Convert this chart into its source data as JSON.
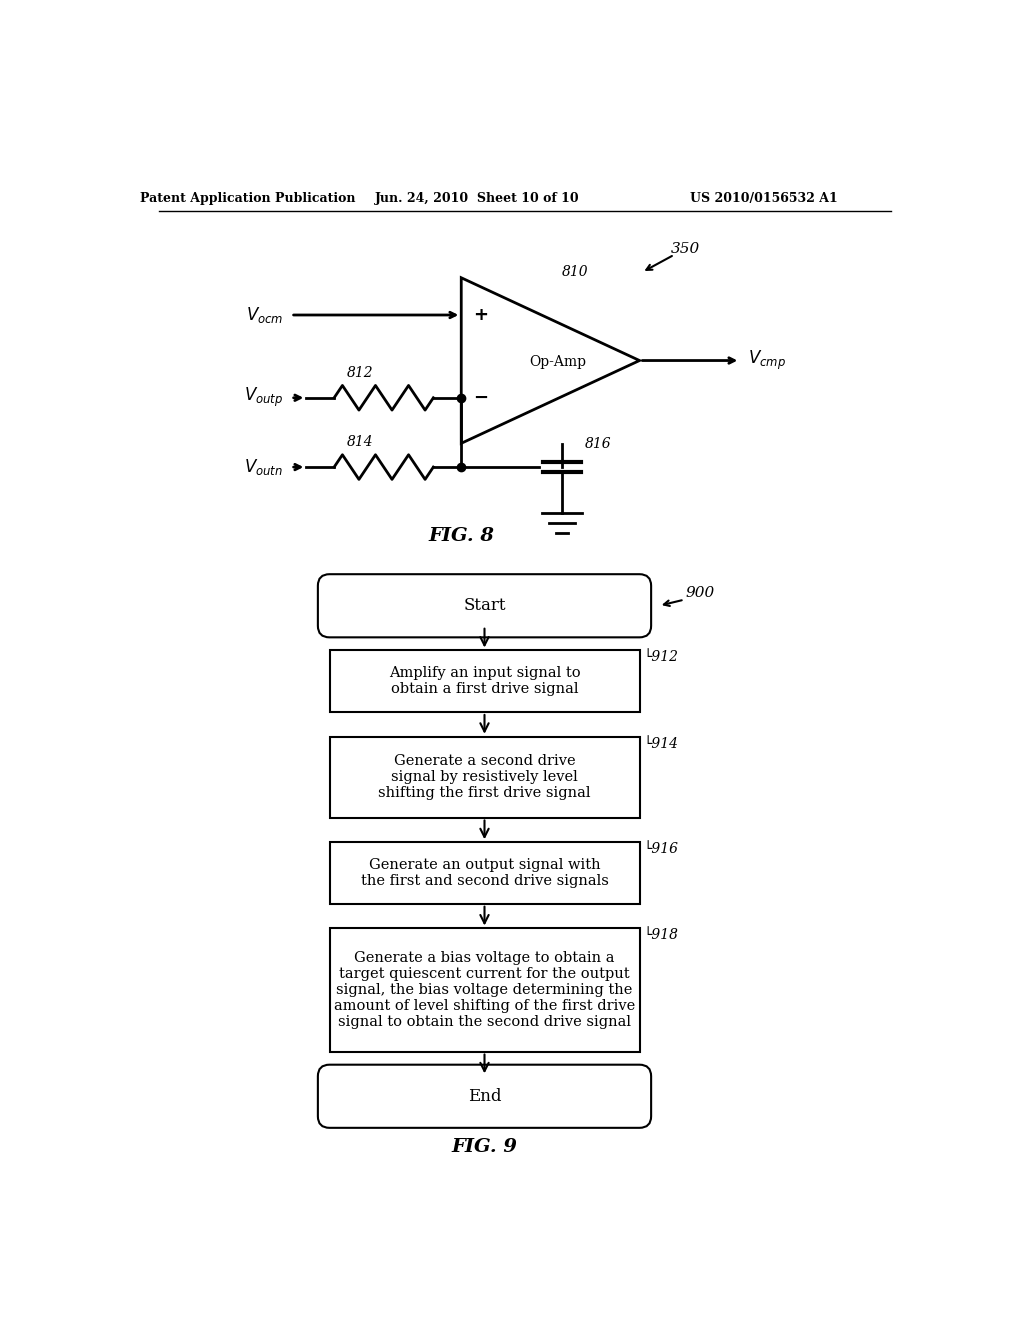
{
  "background_color": "#ffffff",
  "header_text1": "Patent Application Publication",
  "header_text2": "Jun. 24, 2010  Sheet 10 of 10",
  "header_text3": "US 2010/0156532 A1",
  "fig8_label": "FIG. 8",
  "fig9_label": "FIG. 9",
  "fig8_ref": "350",
  "fig8_opamp_label": "810",
  "fig8_opamp_text": "Op-Amp",
  "fig8_r1_label": "812",
  "fig8_r2_label": "814",
  "fig8_cap_label": "816",
  "fig9_ref": "900",
  "fig9_step_labels": [
    "912",
    "914",
    "916",
    "918"
  ],
  "fig9_texts": [
    "Amplify an input signal to\nobtain a first drive signal",
    "Generate a second drive\nsignal by resistively level\nshifting the first drive signal",
    "Generate an output signal with\nthe first and second drive signals",
    "Generate a bias voltage to obtain a\ntarget quiescent current for the output\nsignal, the bias voltage determining the\namount of level shifting of the first drive\nsignal to obtain the second drive signal"
  ]
}
